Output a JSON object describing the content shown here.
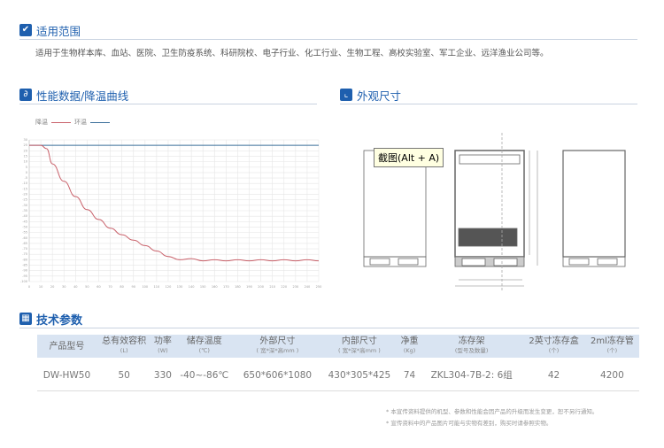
{
  "scope": {
    "title": "适用范围",
    "text": "适用于生物样本库、血站、医院、卫生防疫系统、科研院校、电子行业、化工行业、生物工程、高校实验室、军工企业、远洋渔业公司等。"
  },
  "performance": {
    "title": "性能数据/降温曲线"
  },
  "dimensions": {
    "title": "外观尺寸",
    "tooltip": "截图(Alt + A)"
  },
  "chart_data": {
    "type": "line",
    "xlabel": "",
    "ylabel": "",
    "xlim": [
      0,
      250
    ],
    "ylim": [
      -100,
      30
    ],
    "grid": true,
    "legend_position": "top-left",
    "series": [
      {
        "name": "降温",
        "color": "#c9626b",
        "x": [
          0,
          10,
          15,
          20,
          30,
          40,
          50,
          60,
          70,
          80,
          90,
          100,
          110,
          120,
          130,
          140,
          150,
          160,
          170,
          180,
          190,
          200,
          210,
          220,
          230,
          240,
          250
        ],
        "values": [
          25,
          25,
          22,
          8,
          -8,
          -22,
          -34,
          -43,
          -51,
          -57,
          -62,
          -67,
          -72,
          -77,
          -80,
          -79,
          -81,
          -80,
          -81,
          -80,
          -81,
          -80,
          -81,
          -80,
          -81,
          -80,
          -81
        ]
      },
      {
        "name": "环温",
        "color": "#3a6f9a",
        "x": [
          0,
          250
        ],
        "values": [
          25,
          25
        ]
      }
    ]
  },
  "specs": {
    "title": "技术参数",
    "headers": [
      [
        "产品型号",
        ""
      ],
      [
        "总有效容积",
        "(L)"
      ],
      [
        "功率",
        "(W)"
      ],
      [
        "储存温度",
        "(℃)"
      ],
      [
        "外部尺寸",
        "( 宽*深*高mm )"
      ],
      [
        "内部尺寸",
        "( 宽*深*高mm )"
      ],
      [
        "净重",
        "(Kg)"
      ],
      [
        "冻存架",
        "(型号及数量)"
      ],
      [
        "2英寸冻存盒",
        "(个)"
      ],
      [
        "2ml冻存管",
        "(个)"
      ]
    ],
    "row": [
      "DW-HW50",
      "50",
      "330",
      "-40~-86℃",
      "650*606*1080",
      "430*305*425",
      "74",
      "ZKL304-7B-2: 6组",
      "42",
      "4200"
    ]
  },
  "notes": [
    "* 本宣传资料提供的机型、参数和性能会因产品的升级而发生变更，恕不另行通知。",
    "* 宣传资料中的产品图片可能与实物有差别，购买时请参照实物。"
  ],
  "colors": {
    "accent": "#1e5fae",
    "header_bg": "#d9e4f2"
  }
}
